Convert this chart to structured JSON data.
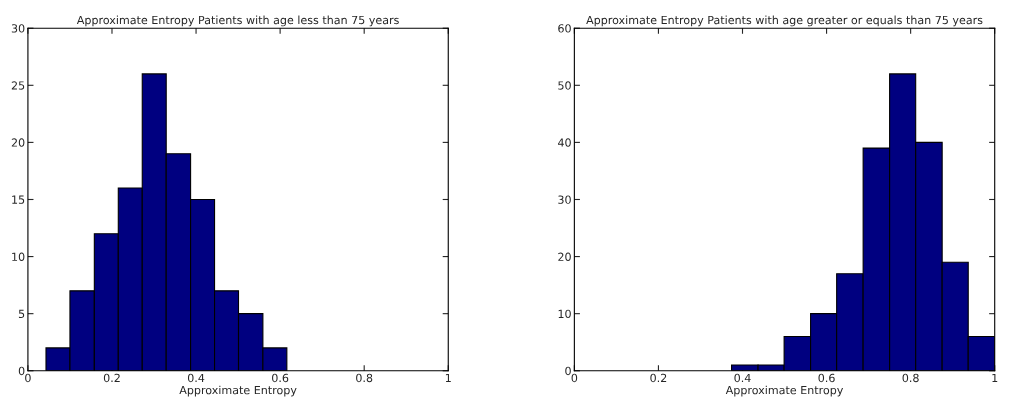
{
  "chart_data": [
    {
      "type": "histogram",
      "title": "Approximate Entropy Patients with age less than 75 years",
      "xlabel": "Approximate Entropy",
      "bins": [
        0.043,
        0.1,
        0.158,
        0.215,
        0.272,
        0.329,
        0.387,
        0.444,
        0.501,
        0.559,
        0.616
      ],
      "values": [
        2,
        7,
        12,
        16,
        26,
        19,
        15,
        7,
        5,
        2
      ],
      "color": "#000080",
      "xlim": [
        0,
        1
      ],
      "xticks": [
        0,
        0.2,
        0.4,
        0.6,
        0.8,
        1
      ],
      "ylim": [
        0,
        30
      ],
      "yticks": [
        0,
        5,
        10,
        15,
        20,
        25,
        30
      ]
    },
    {
      "type": "histogram",
      "title": "Approximate Entropy Patients with age greater or equals than 75 years",
      "xlabel": "Approximate Entropy",
      "bins": [
        0.374,
        0.437,
        0.499,
        0.562,
        0.624,
        0.687,
        0.75,
        0.812,
        0.875,
        0.937,
        1.0
      ],
      "values": [
        1,
        1,
        6,
        10,
        17,
        39,
        52,
        40,
        19,
        6
      ],
      "color": "#000080",
      "xlim": [
        0,
        1
      ],
      "xticks": [
        0,
        0.2,
        0.4,
        0.6,
        0.8,
        1
      ],
      "ylim": [
        0,
        60
      ],
      "yticks": [
        0,
        10,
        20,
        30,
        40,
        50,
        60
      ]
    }
  ]
}
